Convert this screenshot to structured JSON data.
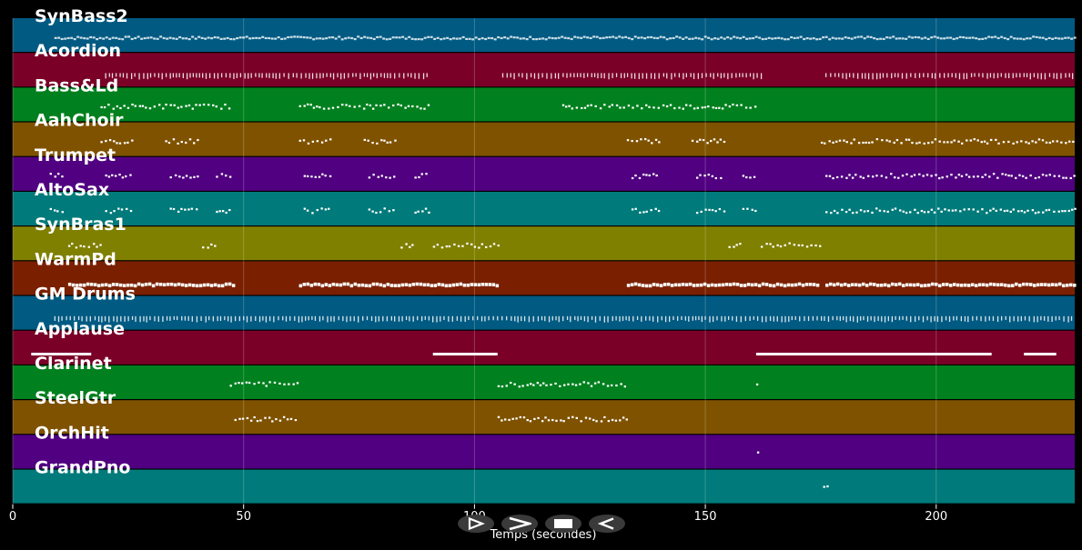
{
  "chart_data": {
    "type": "piano-roll",
    "xlabel": "Temps (secondes)",
    "xlim": [
      0,
      230
    ],
    "xticks": [
      0,
      50,
      100,
      150,
      200
    ],
    "grid": true,
    "tracks": [
      {
        "name": "SynBass2",
        "color": "#005a82",
        "style": "dense",
        "segments": [
          [
            9,
            230
          ]
        ]
      },
      {
        "name": "Acordion",
        "color": "#7a0028",
        "style": "ticks",
        "segments": [
          [
            20,
            90
          ],
          [
            106,
            162
          ],
          [
            176,
            230
          ]
        ]
      },
      {
        "name": "Bass&Ld",
        "color": "#00801e",
        "style": "dots",
        "segments": [
          [
            19,
            47
          ],
          [
            62,
            90
          ],
          [
            119,
            161
          ]
        ]
      },
      {
        "name": "AahChoir",
        "color": "#7f5200",
        "style": "dots",
        "segments": [
          [
            19,
            26
          ],
          [
            33,
            40
          ],
          [
            62,
            69
          ],
          [
            76,
            83
          ],
          [
            133,
            140
          ],
          [
            147,
            154
          ],
          [
            175,
            230
          ]
        ]
      },
      {
        "name": "Trumpet",
        "color": "#500080",
        "style": "dots",
        "segments": [
          [
            8,
            11
          ],
          [
            20,
            26
          ],
          [
            34,
            40
          ],
          [
            44,
            47
          ],
          [
            63,
            69
          ],
          [
            77,
            83
          ],
          [
            87,
            90
          ],
          [
            134,
            140
          ],
          [
            148,
            154
          ],
          [
            158,
            161
          ],
          [
            176,
            230
          ]
        ]
      },
      {
        "name": "AltoSax",
        "color": "#007a7a",
        "style": "dots",
        "segments": [
          [
            8,
            11
          ],
          [
            20,
            26
          ],
          [
            34,
            40
          ],
          [
            44,
            47
          ],
          [
            63,
            69
          ],
          [
            77,
            83
          ],
          [
            87,
            90
          ],
          [
            134,
            140
          ],
          [
            148,
            154
          ],
          [
            158,
            161
          ],
          [
            176,
            230
          ]
        ]
      },
      {
        "name": "SynBras1",
        "color": "#7f7f00",
        "style": "dots",
        "segments": [
          [
            12,
            19
          ],
          [
            41,
            44
          ],
          [
            84,
            87
          ],
          [
            91,
            105
          ],
          [
            155,
            158
          ],
          [
            162,
            175
          ]
        ]
      },
      {
        "name": "WarmPd",
        "color": "#7a2000",
        "style": "bar",
        "segments": [
          [
            12,
            48
          ],
          [
            62,
            105
          ],
          [
            133,
            174
          ],
          [
            176,
            230
          ]
        ]
      },
      {
        "name": "GM Drums",
        "color": "#005a82",
        "style": "ticks",
        "segments": [
          [
            9,
            230
          ]
        ]
      },
      {
        "name": "Applause",
        "color": "#7a0028",
        "style": "line",
        "segments": [
          [
            4,
            17
          ],
          [
            91,
            105
          ],
          [
            161,
            212
          ],
          [
            219,
            226
          ]
        ]
      },
      {
        "name": "Clarinet",
        "color": "#00801e",
        "style": "dots",
        "segments": [
          [
            47,
            62
          ],
          [
            105,
            133
          ],
          [
            161,
            161.6
          ]
        ]
      },
      {
        "name": "SteelGtr",
        "color": "#7f5200",
        "style": "dots",
        "segments": [
          [
            48,
            62
          ],
          [
            105,
            133
          ]
        ]
      },
      {
        "name": "OrchHit",
        "color": "#500080",
        "style": "dots",
        "segments": [
          [
            161.2,
            161.9
          ]
        ]
      },
      {
        "name": "GrandPno",
        "color": "#007a7a",
        "style": "dots",
        "segments": [
          [
            175.5,
            177
          ]
        ]
      }
    ]
  },
  "transport": {
    "buttons": [
      {
        "name": "play-from-start",
        "icon": "play-outline-icon"
      },
      {
        "name": "play",
        "icon": "chevron-right-icon"
      },
      {
        "name": "stop",
        "icon": "stop-icon"
      },
      {
        "name": "rewind",
        "icon": "rewind-icon"
      }
    ]
  }
}
